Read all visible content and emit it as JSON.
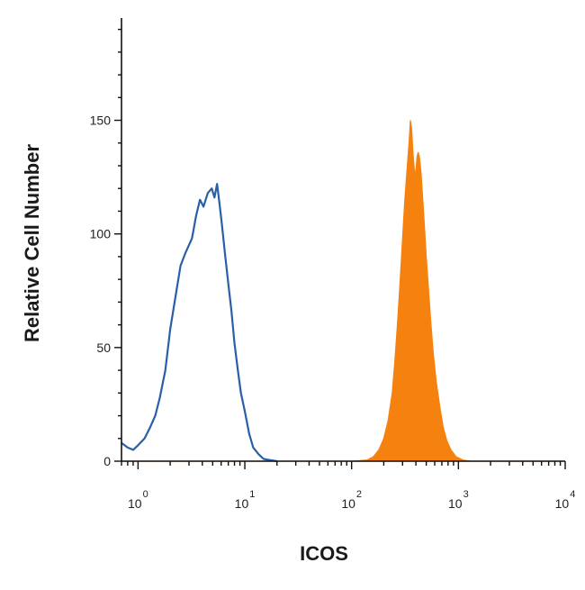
{
  "chart_data": {
    "type": "area",
    "title": "",
    "xlabel": "ICOS",
    "ylabel": "Relative Cell Number",
    "x_scale": "log",
    "xlim": [
      0.7,
      10000
    ],
    "ylim": [
      0,
      195
    ],
    "y_ticks": [
      0,
      50,
      100,
      150
    ],
    "y_tick_labels": [
      "0",
      "50",
      "100",
      "150"
    ],
    "x_ticks": [
      {
        "base": "10",
        "exp": "0",
        "value": 1
      },
      {
        "base": "10",
        "exp": "1",
        "value": 10
      },
      {
        "base": "10",
        "exp": "2",
        "value": 100
      },
      {
        "base": "10",
        "exp": "3",
        "value": 1000
      },
      {
        "base": "10",
        "exp": "4",
        "value": 10000
      }
    ],
    "grid": false,
    "legend": "none",
    "series": [
      {
        "style": "line",
        "color": "#2a5fa8",
        "points": [
          [
            0.7,
            8
          ],
          [
            0.8,
            6
          ],
          [
            0.9,
            5
          ],
          [
            1.0,
            7
          ],
          [
            1.15,
            10
          ],
          [
            1.3,
            15
          ],
          [
            1.45,
            20
          ],
          [
            1.6,
            28
          ],
          [
            1.8,
            40
          ],
          [
            2.0,
            58
          ],
          [
            2.2,
            70
          ],
          [
            2.5,
            86
          ],
          [
            2.8,
            92
          ],
          [
            3.2,
            98
          ],
          [
            3.5,
            108
          ],
          [
            3.8,
            115
          ],
          [
            4.1,
            112
          ],
          [
            4.5,
            118
          ],
          [
            4.9,
            120
          ],
          [
            5.2,
            116
          ],
          [
            5.5,
            122
          ],
          [
            5.8,
            113
          ],
          [
            6.1,
            104
          ],
          [
            6.5,
            92
          ],
          [
            7.0,
            78
          ],
          [
            7.5,
            66
          ],
          [
            8.0,
            52
          ],
          [
            8.6,
            40
          ],
          [
            9.2,
            30
          ],
          [
            10.0,
            22
          ],
          [
            11.0,
            12
          ],
          [
            12.0,
            6
          ],
          [
            13.5,
            3
          ],
          [
            15.0,
            1
          ],
          [
            17.0,
            0.5
          ],
          [
            20.0,
            0
          ]
        ]
      },
      {
        "style": "filled",
        "color": "#f5820f",
        "points": [
          [
            0.7,
            0
          ],
          [
            100,
            0
          ],
          [
            140,
            0.5
          ],
          [
            160,
            2
          ],
          [
            180,
            5
          ],
          [
            200,
            10
          ],
          [
            220,
            18
          ],
          [
            240,
            30
          ],
          [
            255,
            45
          ],
          [
            270,
            62
          ],
          [
            285,
            80
          ],
          [
            300,
            98
          ],
          [
            315,
            115
          ],
          [
            330,
            128
          ],
          [
            345,
            140
          ],
          [
            355,
            150
          ],
          [
            365,
            146
          ],
          [
            375,
            136
          ],
          [
            390,
            126
          ],
          [
            400,
            128
          ],
          [
            410,
            134
          ],
          [
            420,
            136
          ],
          [
            430,
            134
          ],
          [
            445,
            128
          ],
          [
            460,
            118
          ],
          [
            480,
            104
          ],
          [
            500,
            90
          ],
          [
            525,
            76
          ],
          [
            550,
            62
          ],
          [
            580,
            48
          ],
          [
            620,
            35
          ],
          [
            670,
            24
          ],
          [
            720,
            15
          ],
          [
            780,
            9
          ],
          [
            850,
            5
          ],
          [
            950,
            2
          ],
          [
            1100,
            0.5
          ],
          [
            1300,
            0
          ],
          [
            10000,
            0
          ]
        ]
      }
    ]
  }
}
